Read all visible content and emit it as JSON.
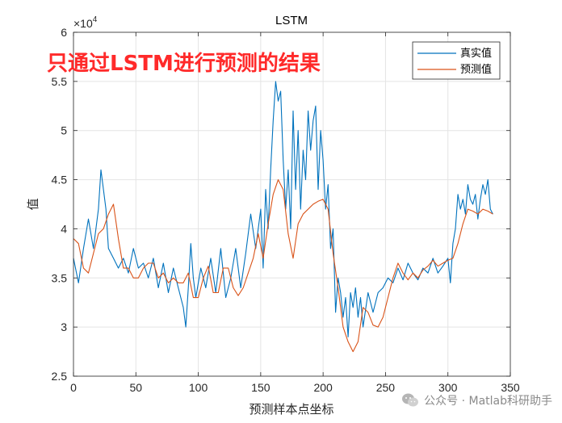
{
  "chart_data": {
    "type": "line",
    "title": "LSTM",
    "xlabel": "预测样本点坐标",
    "ylabel": "值",
    "xlim": [
      0,
      350
    ],
    "ylim": [
      25000,
      60000
    ],
    "y_exponent_label": "×10",
    "y_exponent_power": "4",
    "xticks": [
      0,
      50,
      100,
      150,
      200,
      250,
      300,
      350
    ],
    "xtick_labels": [
      "0",
      "50",
      "100",
      "150",
      "200",
      "250",
      "300",
      "350"
    ],
    "yticks": [
      25000,
      30000,
      35000,
      40000,
      45000,
      50000,
      55000,
      60000
    ],
    "ytick_labels": [
      "2.5",
      "3",
      "3.5",
      "4",
      "4.5",
      "5",
      "5.5",
      "6"
    ],
    "grid": true,
    "legend_position": "top-right",
    "annotation": "只通过LSTM进行预测的结果",
    "series": [
      {
        "name": "真实值",
        "color": "#0072BD",
        "x": [
          0,
          4,
          8,
          12,
          16,
          20,
          22,
          24,
          26,
          28,
          32,
          36,
          40,
          44,
          48,
          52,
          56,
          60,
          64,
          68,
          72,
          76,
          80,
          84,
          88,
          90,
          92,
          94,
          96,
          98,
          102,
          106,
          110,
          114,
          118,
          122,
          126,
          130,
          134,
          138,
          142,
          146,
          150,
          152,
          154,
          156,
          158,
          160,
          162,
          164,
          166,
          168,
          170,
          172,
          174,
          176,
          178,
          180,
          182,
          184,
          186,
          188,
          190,
          192,
          194,
          196,
          198,
          200,
          202,
          204,
          206,
          208,
          210,
          212,
          214,
          216,
          218,
          220,
          222,
          224,
          226,
          228,
          230,
          232,
          236,
          240,
          244,
          248,
          252,
          256,
          260,
          264,
          268,
          272,
          276,
          280,
          284,
          288,
          292,
          296,
          300,
          302,
          304,
          306,
          308,
          310,
          312,
          314,
          316,
          318,
          320,
          322,
          324,
          326,
          328,
          330,
          332,
          334,
          336
        ],
        "y": [
          37000,
          34500,
          38000,
          41000,
          38000,
          42000,
          46000,
          44000,
          42000,
          38000,
          37000,
          36000,
          37000,
          35500,
          38000,
          36000,
          36500,
          35000,
          37000,
          34000,
          36500,
          33500,
          36000,
          34000,
          32000,
          30000,
          34000,
          38500,
          35000,
          33000,
          36000,
          34000,
          37000,
          33500,
          38000,
          33000,
          35000,
          38000,
          34000,
          37500,
          41500,
          38000,
          42000,
          36000,
          44000,
          40000,
          46000,
          51000,
          55000,
          53000,
          54000,
          47000,
          42000,
          46000,
          40000,
          52000,
          44000,
          50000,
          42000,
          48000,
          45000,
          52000,
          48000,
          51000,
          52500,
          44000,
          50000,
          47000,
          42000,
          44500,
          38000,
          40000,
          31500,
          35000,
          33500,
          31000,
          33000,
          29000,
          33500,
          32000,
          34000,
          31000,
          33000,
          30000,
          33500,
          31500,
          33500,
          34000,
          35000,
          34500,
          36000,
          34800,
          36500,
          35500,
          34800,
          36000,
          35500,
          37000,
          35500,
          36200,
          37000,
          34500,
          38500,
          40000,
          43500,
          42000,
          43000,
          41500,
          44500,
          43000,
          42500,
          43500,
          41000,
          43000,
          44500,
          43500,
          45000,
          42000,
          41500
        ]
      },
      {
        "name": "预测值",
        "color": "#D95319",
        "x": [
          0,
          4,
          8,
          12,
          16,
          20,
          24,
          28,
          32,
          36,
          40,
          44,
          48,
          52,
          56,
          60,
          64,
          68,
          72,
          76,
          80,
          84,
          88,
          92,
          96,
          100,
          104,
          108,
          112,
          116,
          120,
          124,
          128,
          132,
          136,
          140,
          144,
          148,
          152,
          156,
          160,
          164,
          168,
          172,
          176,
          180,
          184,
          188,
          192,
          196,
          200,
          204,
          208,
          212,
          216,
          220,
          224,
          228,
          232,
          236,
          240,
          244,
          248,
          252,
          256,
          260,
          264,
          268,
          272,
          276,
          280,
          284,
          288,
          292,
          296,
          300,
          304,
          308,
          312,
          316,
          320,
          324,
          328,
          332,
          336
        ],
        "y": [
          39000,
          38500,
          36000,
          35500,
          37500,
          39500,
          40000,
          41500,
          42500,
          39000,
          36000,
          36000,
          35000,
          35000,
          36000,
          36500,
          36500,
          35000,
          35500,
          34500,
          35000,
          34500,
          34500,
          35500,
          33000,
          33000,
          35000,
          36200,
          33500,
          33500,
          36000,
          36000,
          34000,
          33200,
          34000,
          35500,
          37000,
          39500,
          37000,
          40500,
          43500,
          45000,
          44000,
          39500,
          37000,
          40500,
          41500,
          42000,
          42500,
          42800,
          43000,
          42000,
          37500,
          34000,
          30000,
          28500,
          27500,
          28500,
          32000,
          31500,
          30200,
          30000,
          31000,
          33000,
          35000,
          36500,
          35500,
          34800,
          35500,
          35000,
          35800,
          36200,
          36800,
          36200,
          36500,
          36800,
          37000,
          38500,
          40500,
          42000,
          41800,
          41500,
          42000,
          41800,
          41500
        ]
      }
    ]
  },
  "watermark": {
    "text": "公众号 · Matlab科研助手",
    "icon": "wechat-icon"
  }
}
